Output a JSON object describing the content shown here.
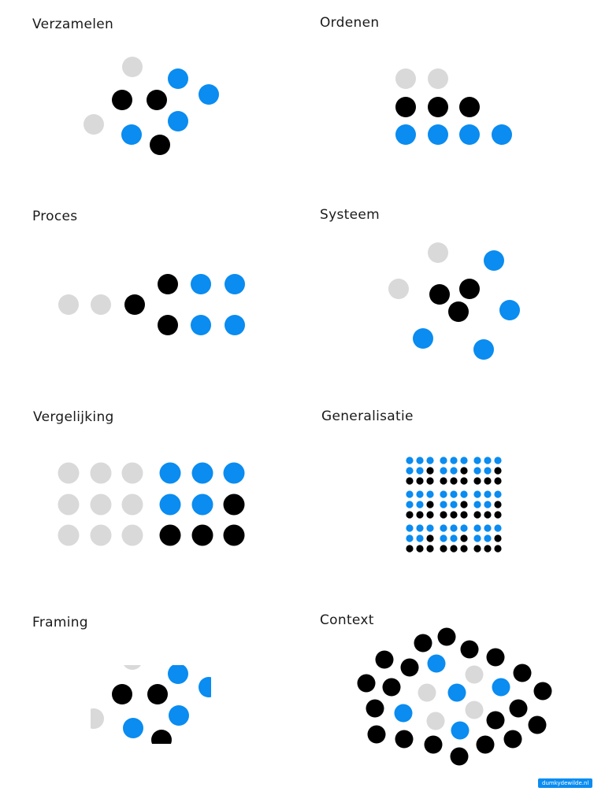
{
  "colors": {
    "gray": "#d9d9d9",
    "black": "#000000",
    "blue": "#0a8cf0"
  },
  "titles": {
    "verzamelen": "Verzamelen",
    "ordenen": "Ordenen",
    "proces": "Proces",
    "systeem": "Systeem",
    "vergelijking": "Vergelijking",
    "generalisatie": "Generalisatie",
    "framing": "Framing",
    "context": "Context"
  },
  "credit": "dumkydewilde.nl"
}
